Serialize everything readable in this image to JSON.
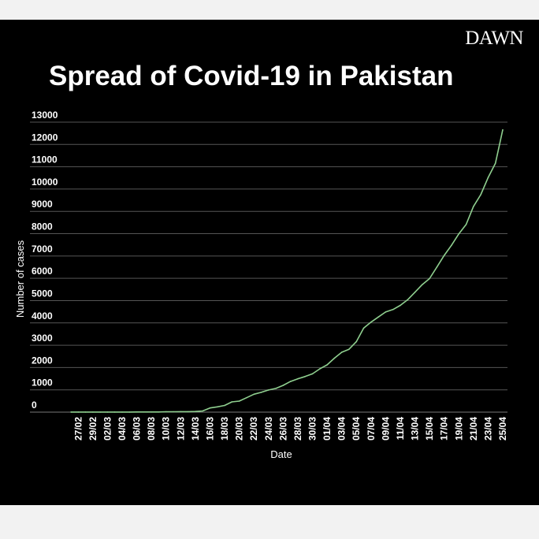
{
  "brand": "DAWN",
  "colors": {
    "background": "#000000",
    "line": "#8fcf8f",
    "grid": "#555555",
    "text": "#ffffff"
  },
  "chart_data": {
    "type": "line",
    "title": "Spread of Covid-19 in Pakistan",
    "xlabel": "Date",
    "ylabel": "Number of cases",
    "ylim": [
      0,
      13000
    ],
    "yticks": [
      0,
      1000,
      2000,
      3000,
      4000,
      5000,
      6000,
      7000,
      8000,
      9000,
      10000,
      11000,
      12000,
      13000
    ],
    "xtick_labels": [
      "27/02",
      "29/02",
      "02/03",
      "04/03",
      "06/03",
      "08/03",
      "10/03",
      "12/03",
      "14/03",
      "16/03",
      "18/03",
      "20/03",
      "22/03",
      "24/03",
      "26/03",
      "28/03",
      "30/03",
      "01/04",
      "03/04",
      "05/04",
      "07/04",
      "09/04",
      "11/04",
      "13/04",
      "15/04",
      "17/04",
      "19/04",
      "21/04",
      "23/04",
      "25/04"
    ],
    "grid": true,
    "series": [
      {
        "x": [
          "26/02",
          "27/02",
          "28/02",
          "29/02",
          "01/03",
          "02/03",
          "03/03",
          "04/03",
          "05/03",
          "06/03",
          "07/03",
          "08/03",
          "09/03",
          "10/03",
          "11/03",
          "12/03",
          "13/03",
          "14/03",
          "15/03",
          "16/03",
          "17/03",
          "18/03",
          "19/03",
          "20/03",
          "21/03",
          "22/03",
          "23/03",
          "24/03",
          "25/03",
          "26/03",
          "27/03",
          "28/03",
          "29/03",
          "30/03",
          "31/03",
          "01/04",
          "02/04",
          "03/04",
          "04/04",
          "05/04",
          "06/04",
          "07/04",
          "08/04",
          "09/04",
          "10/04",
          "11/04",
          "12/04",
          "13/04",
          "14/04",
          "15/04",
          "16/04",
          "17/04",
          "18/04",
          "19/04",
          "20/04",
          "21/04",
          "22/04",
          "23/04",
          "24/04",
          "25/04"
        ],
        "values": [
          2,
          2,
          2,
          4,
          4,
          5,
          5,
          5,
          5,
          6,
          6,
          6,
          6,
          16,
          19,
          20,
          21,
          28,
          53,
          187,
          237,
          301,
          461,
          495,
          645,
          803,
          887,
          991,
          1063,
          1201,
          1373,
          1495,
          1597,
          1717,
          1938,
          2118,
          2421,
          2686,
          2818,
          3157,
          3766,
          4035,
          4263,
          4489,
          4601,
          4788,
          5038,
          5374,
          5716,
          5988,
          6505,
          7025,
          7481,
          7993,
          8418,
          9216,
          9749,
          10513,
          11155,
          12657
        ]
      }
    ]
  }
}
